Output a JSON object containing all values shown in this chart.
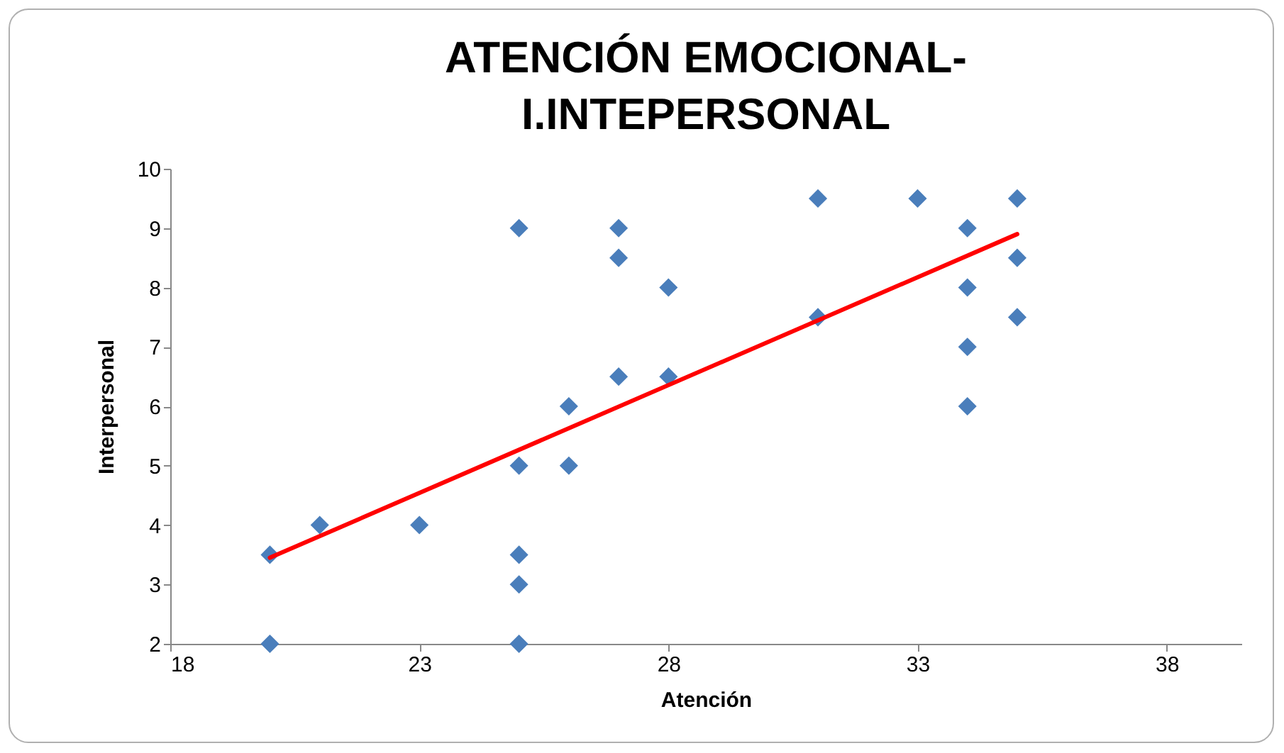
{
  "chart_data": {
    "type": "scatter",
    "title": "ATENCIÓN EMOCIONAL-\nI.INTEPERSONAL",
    "xlabel": "Atención",
    "ylabel": "Interpersonal",
    "xlim": [
      18,
      39.5
    ],
    "xticks": [
      18,
      23,
      28,
      33,
      38
    ],
    "ylim": [
      2,
      10
    ],
    "yticks": [
      2,
      3,
      4,
      5,
      6,
      7,
      8,
      9,
      10
    ],
    "grid": false,
    "series": [
      {
        "marker": "diamond",
        "color": "#4a7ebb",
        "x": [
          20,
          20,
          21,
          23,
          25,
          25,
          25,
          25,
          25,
          26,
          26,
          27,
          27,
          27,
          28,
          28,
          31,
          31,
          33,
          34,
          34,
          34,
          34,
          35,
          35,
          35
        ],
        "values": [
          2,
          3.5,
          4,
          4,
          9,
          5,
          3.5,
          3,
          2,
          6,
          5,
          9,
          8.5,
          6.5,
          8,
          6.5,
          9.5,
          7.5,
          9.5,
          9,
          8,
          7,
          6,
          9.5,
          8.5,
          7.5
        ]
      },
      {
        "type": "line",
        "color": "#ff0000",
        "x": [
          20,
          35
        ],
        "values": [
          3.45,
          8.9
        ]
      }
    ]
  }
}
